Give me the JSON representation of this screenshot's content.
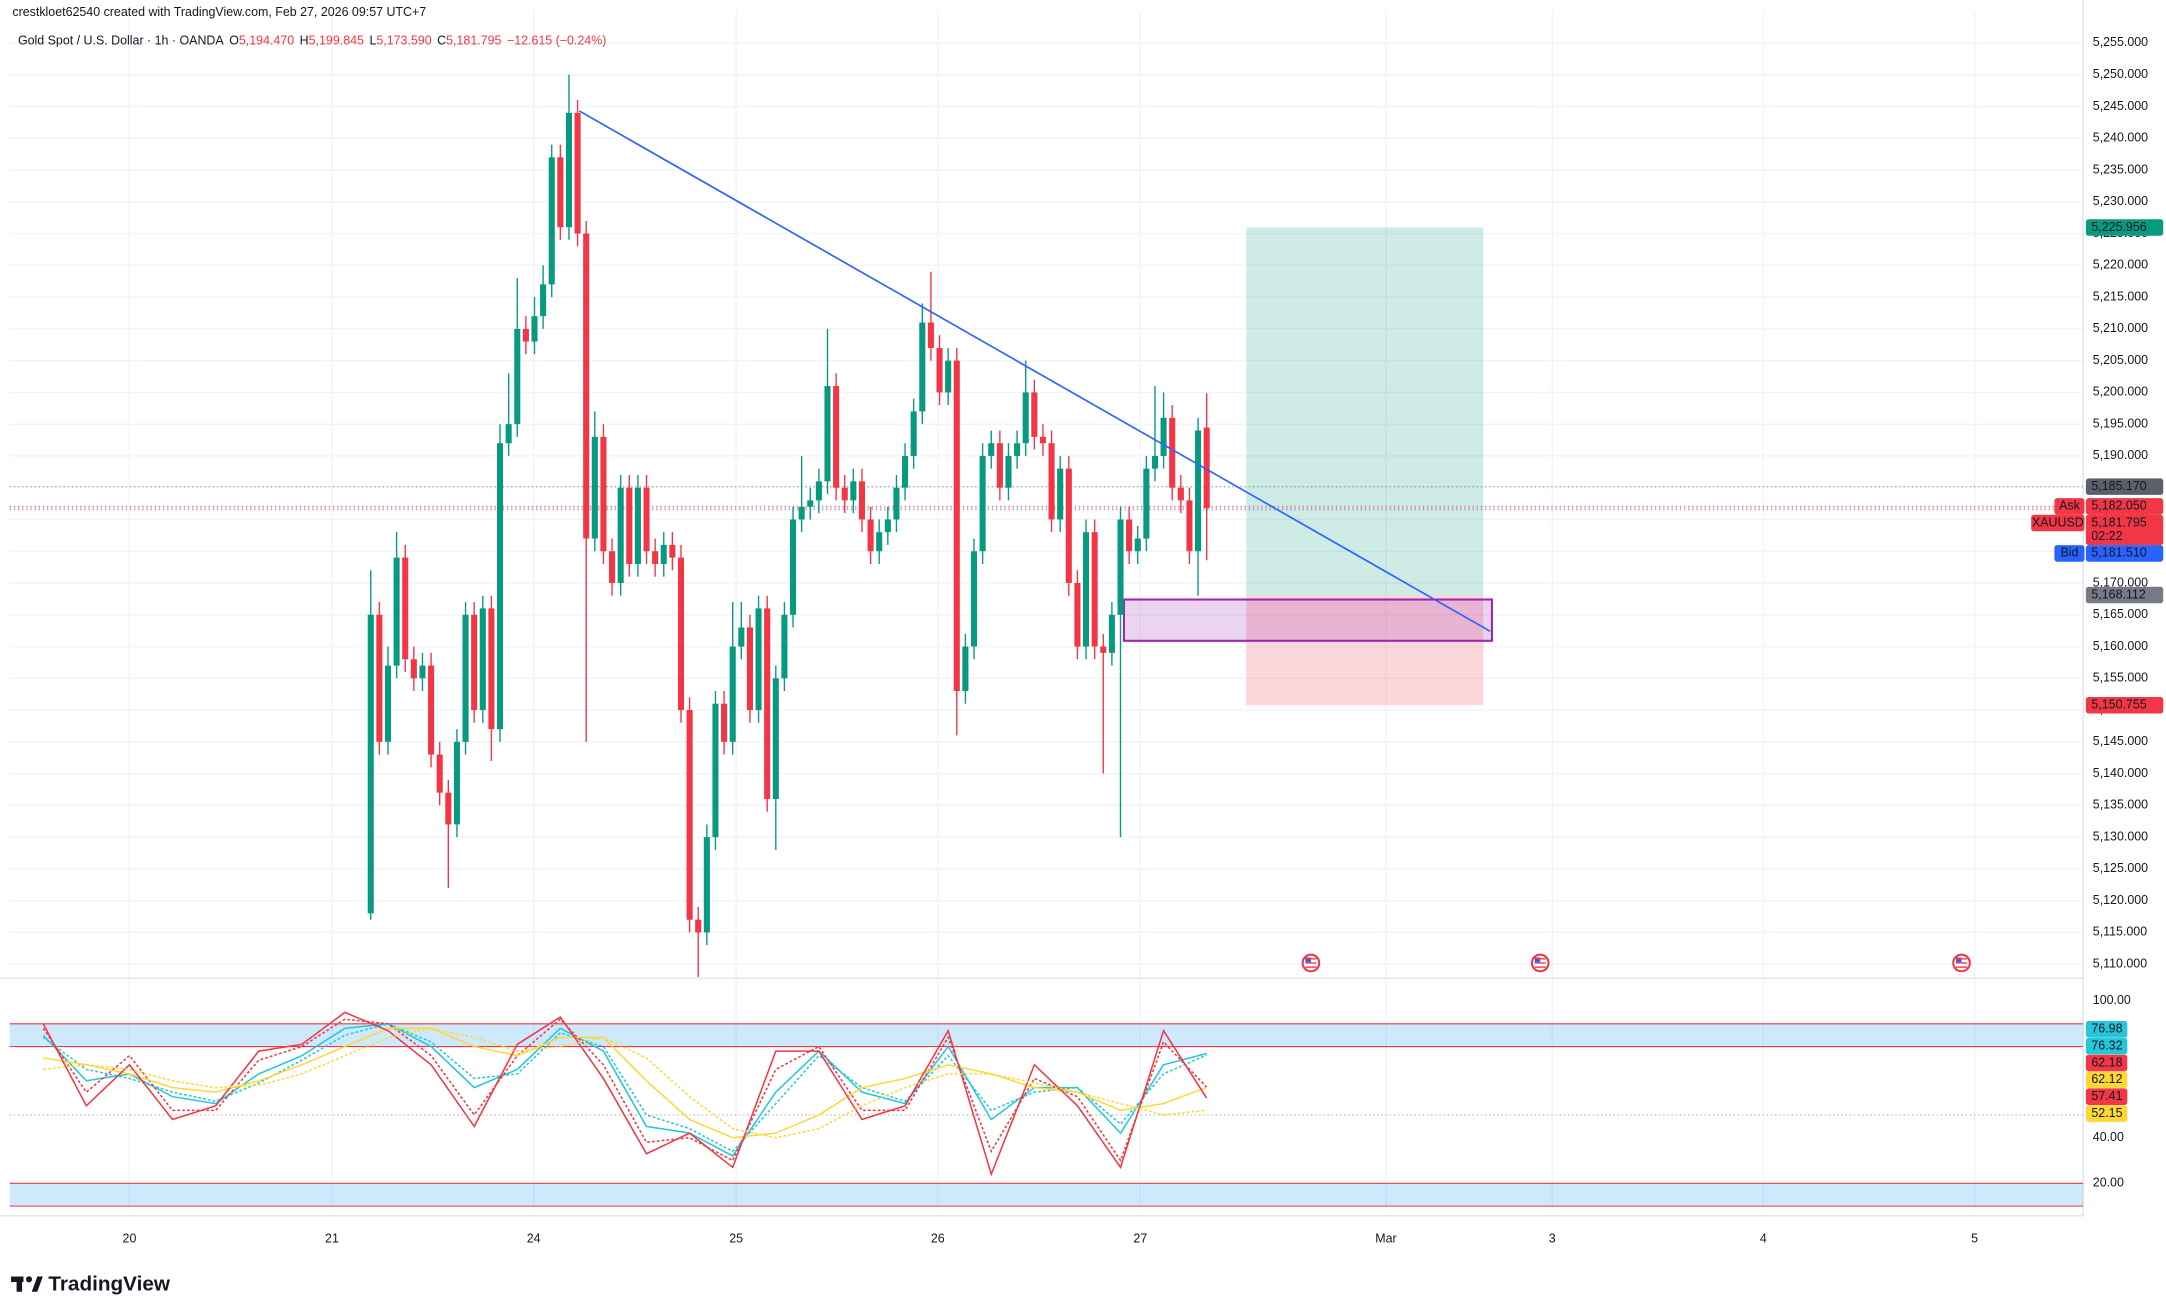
{
  "header": {
    "creator": "crestkloet62540 created with TradingView.com, Feb 27, 2026 09:57 UTC+7",
    "symbol": "Gold Spot / U.S. Dollar · 1h · OANDA",
    "ohlc": [
      {
        "key": "O",
        "value": "5,194.470"
      },
      {
        "key": "H",
        "value": "5,199.845"
      },
      {
        "key": "L",
        "value": "5,173.590"
      },
      {
        "key": "C",
        "value": "5,181.795"
      }
    ],
    "change": "−12.615 (−0.24%)"
  },
  "chart_data": [
    {
      "type": "candlestick",
      "up_color": "#089981",
      "down_color": "#f23645",
      "grid": true,
      "xlim": [
        -13.9,
        226.7
      ],
      "xticks": [
        {
          "value": 0,
          "label": "20"
        },
        {
          "value": 23.5,
          "label": "21"
        },
        {
          "value": 46.9,
          "label": "24"
        },
        {
          "value": 70.4,
          "label": "25"
        },
        {
          "value": 93.8,
          "label": "26"
        },
        {
          "value": 117.3,
          "label": "27"
        },
        {
          "value": 145.8,
          "label": "Mar"
        },
        {
          "value": 165.1,
          "label": "3"
        },
        {
          "value": 189.6,
          "label": "4"
        },
        {
          "value": 214.1,
          "label": "5"
        }
      ],
      "ylim": [
        5107.8,
        5260
      ],
      "yticks": [
        {
          "value": 5110,
          "label": "5,110.000"
        },
        {
          "value": 5115,
          "label": "5,115.000"
        },
        {
          "value": 5120,
          "label": "5,120.000"
        },
        {
          "value": 5125,
          "label": "5,125.000"
        },
        {
          "value": 5130,
          "label": "5,130.000"
        },
        {
          "value": 5135,
          "label": "5,135.000"
        },
        {
          "value": 5140,
          "label": "5,140.000"
        },
        {
          "value": 5145,
          "label": "5,145.000"
        },
        {
          "value": 5150,
          "label": "5,150.000"
        },
        {
          "value": 5155,
          "label": "5,155.000"
        },
        {
          "value": 5160,
          "label": "5,160.000"
        },
        {
          "value": 5165,
          "label": "5,165.000"
        },
        {
          "value": 5170,
          "label": "5,170.000"
        },
        {
          "value": 5175,
          "label": "5,175.000"
        },
        {
          "value": 5180,
          "label": "5,180.000"
        },
        {
          "value": 5185,
          "label": "5,185.000"
        },
        {
          "value": 5190,
          "label": "5,190.000"
        },
        {
          "value": 5195,
          "label": "5,195.000"
        },
        {
          "value": 5200,
          "label": "5,200.000"
        },
        {
          "value": 5205,
          "label": "5,205.000"
        },
        {
          "value": 5210,
          "label": "5,210.000"
        },
        {
          "value": 5215,
          "label": "5,215.000"
        },
        {
          "value": 5220,
          "label": "5,220.000"
        },
        {
          "value": 5225,
          "label": "5,225.000"
        },
        {
          "value": 5230,
          "label": "5,230.000"
        },
        {
          "value": 5235,
          "label": "5,235.000"
        },
        {
          "value": 5240,
          "label": "5,240.000"
        },
        {
          "value": 5245,
          "label": "5,245.000"
        },
        {
          "value": 5250,
          "label": "5,250.000"
        },
        {
          "value": 5255,
          "label": "5,255.000"
        }
      ],
      "x": [
        28,
        29,
        30,
        31,
        32,
        33,
        34,
        35,
        36,
        37,
        38,
        39,
        40,
        41,
        42,
        43,
        44,
        45,
        46,
        47,
        48,
        49,
        50,
        51,
        52,
        53,
        54,
        55,
        56,
        57,
        58,
        59,
        60,
        61,
        62,
        63,
        64,
        65,
        66,
        67,
        68,
        69,
        70,
        71,
        72,
        73,
        74,
        75,
        76,
        77,
        78,
        79,
        80,
        81,
        82,
        83,
        84,
        85,
        86,
        87,
        88,
        89,
        90,
        91,
        92,
        93,
        94,
        95,
        96,
        97,
        98,
        99,
        100,
        101,
        102,
        103,
        104,
        105,
        106,
        107,
        108,
        109,
        110,
        111,
        112,
        113,
        114,
        115,
        116,
        117,
        118,
        119,
        120,
        121,
        122,
        123,
        124,
        125
      ],
      "open": [
        5118,
        5165,
        5145,
        5157,
        5174,
        5158,
        5155,
        5157,
        5143,
        5137,
        5132,
        5145,
        5165,
        5150,
        5166,
        5147,
        5192,
        5195,
        5210,
        5208,
        5212,
        5217,
        5237,
        5226,
        5244,
        5225,
        5177,
        5193,
        5175,
        5170,
        5185,
        5173,
        5185,
        5175,
        5173,
        5176,
        5174,
        5150,
        5117,
        5115,
        5130,
        5151,
        5145,
        5160,
        5163,
        5150,
        5166,
        5136,
        5155,
        5165,
        5180,
        5182,
        5183,
        5186,
        5201,
        5185,
        5183,
        5186,
        5180,
        5175,
        5178,
        5180,
        5185,
        5190,
        5197,
        5211,
        5207,
        5200,
        5205,
        5153,
        5160,
        5175,
        5190,
        5192,
        5185,
        5190,
        5192,
        5200,
        5193,
        5192,
        5180,
        5188,
        5170,
        5160,
        5178,
        5160,
        5159,
        5165,
        5180,
        5175,
        5177,
        5188,
        5190,
        5196,
        5185,
        5183,
        5175,
        5194.47
      ],
      "high": [
        5172,
        5167,
        5160,
        5178,
        5176,
        5160,
        5159,
        5159,
        5145,
        5139,
        5147,
        5167,
        5167,
        5168,
        5168,
        5195,
        5203,
        5218,
        5212,
        5215,
        5220,
        5239,
        5239,
        5250,
        5246,
        5227,
        5197,
        5195,
        5177,
        5187,
        5187,
        5187,
        5187,
        5177,
        5178,
        5178,
        5176,
        5152,
        5119,
        5132,
        5153,
        5153,
        5167,
        5167,
        5165,
        5168,
        5168,
        5157,
        5167,
        5182,
        5190,
        5185,
        5188,
        5210,
        5203,
        5187,
        5188,
        5188,
        5182,
        5180,
        5182,
        5187,
        5192,
        5199,
        5214,
        5219,
        5209,
        5207,
        5207,
        5162,
        5177,
        5192,
        5194,
        5194,
        5192,
        5194,
        5205,
        5202,
        5195,
        5194,
        5190,
        5190,
        5172,
        5180,
        5180,
        5162,
        5167,
        5182,
        5182,
        5179,
        5190,
        5201,
        5200,
        5198,
        5187,
        5185,
        5196,
        5199.845
      ],
      "low": [
        5117,
        5143,
        5143,
        5155,
        5156,
        5153,
        5153,
        5141,
        5135,
        5122,
        5130,
        5143,
        5148,
        5148,
        5142,
        5145,
        5190,
        5193,
        5206,
        5206,
        5210,
        5215,
        5224,
        5224,
        5223,
        5145,
        5175,
        5173,
        5168,
        5168,
        5171,
        5171,
        5173,
        5171,
        5171,
        5172,
        5148,
        5115,
        5108,
        5113,
        5128,
        5143,
        5143,
        5158,
        5148,
        5148,
        5134,
        5128,
        5153,
        5163,
        5178,
        5180,
        5181,
        5184,
        5183,
        5181,
        5181,
        5178,
        5173,
        5173,
        5176,
        5178,
        5183,
        5188,
        5195,
        5205,
        5198,
        5198,
        5146,
        5151,
        5158,
        5173,
        5188,
        5183,
        5183,
        5188,
        5190,
        5191,
        5190,
        5178,
        5178,
        5168,
        5158,
        5158,
        5158,
        5140,
        5157,
        5130,
        5173,
        5173,
        5175,
        5186,
        5188,
        5183,
        5181,
        5173,
        5168,
        5173.59
      ],
      "close": [
        5165,
        5145,
        5157,
        5174,
        5158,
        5155,
        5157,
        5143,
        5137,
        5132,
        5145,
        5165,
        5150,
        5166,
        5147,
        5192,
        5195,
        5210,
        5208,
        5212,
        5217,
        5237,
        5226,
        5244,
        5225,
        5177,
        5193,
        5175,
        5170,
        5185,
        5173,
        5185,
        5175,
        5173,
        5176,
        5174,
        5150,
        5117,
        5115,
        5130,
        5151,
        5145,
        5160,
        5163,
        5150,
        5166,
        5136,
        5155,
        5165,
        5180,
        5182,
        5183,
        5186,
        5201,
        5185,
        5183,
        5186,
        5180,
        5175,
        5178,
        5180,
        5185,
        5190,
        5197,
        5211,
        5207,
        5200,
        5205,
        5153,
        5160,
        5175,
        5190,
        5192,
        5185,
        5190,
        5192,
        5200,
        5193,
        5192,
        5180,
        5188,
        5170,
        5160,
        5178,
        5160,
        5159,
        5165,
        5180,
        5175,
        5177,
        5188,
        5190,
        5196,
        5185,
        5183,
        5175,
        5194,
        5181.795
      ],
      "trendline": {
        "x": [
          52.2,
          157.9
        ],
        "y": [
          5244.3,
          5162.4
        ],
        "color": "#2962ff"
      },
      "long_position": {
        "x": [
          129.6,
          157.1
        ],
        "entry": {
          "value": 5168.112,
          "label": "5,168.112",
          "color": "#787b86"
        },
        "target": {
          "value": 5225.956,
          "label": "5,225.956",
          "color": "#089981"
        },
        "stop": {
          "value": 5150.755,
          "label": "5,150.755",
          "color": "#f23645"
        }
      },
      "zone": {
        "x": [
          115.4,
          158.1
        ],
        "y": [
          5160.9,
          5167.4
        ],
        "color": "#9c27b0"
      },
      "price_lines": [
        {
          "value": 5185.17,
          "label": "5,185.170",
          "color": "#5d606b"
        },
        {
          "name": "Ask",
          "value": 5182.05,
          "label": "5,182.050",
          "color": "#f23645"
        },
        {
          "name": "XAUUSD",
          "value": 5181.795,
          "label": "5,181.795",
          "countdown": "02:22",
          "color": "#f23645"
        },
        {
          "name": "Bid",
          "value": 5181.51,
          "label": "5,181.510",
          "color": "#2962ff"
        }
      ]
    },
    {
      "type": "line",
      "grid": true,
      "xlim": [
        -13.9,
        226.7
      ],
      "ylim": [
        8.8,
        110
      ],
      "yticks": [
        {
          "value": 100,
          "label": "100.00"
        },
        {
          "value": 40,
          "label": "40.00"
        },
        {
          "value": 20,
          "label": "20.00"
        }
      ],
      "bands": [
        {
          "from": 80,
          "to": 90
        },
        {
          "from": 10,
          "to": 20
        }
      ],
      "band_color": "#2196f3",
      "band_edge_color": "#f23645",
      "midline": 50,
      "x": [
        -10,
        -5,
        0,
        5,
        10,
        15,
        20,
        25,
        30,
        35,
        40,
        45,
        50,
        55,
        60,
        65,
        70,
        75,
        80,
        85,
        90,
        95,
        100,
        105,
        110,
        115,
        120,
        125
      ],
      "series": [
        {
          "color": "#26c6da",
          "dash": false,
          "values": [
            85,
            65,
            68,
            58,
            55,
            68,
            76,
            88,
            90,
            80,
            62,
            70,
            88,
            78,
            45,
            42,
            32,
            60,
            78,
            60,
            55,
            80,
            48,
            62,
            62,
            42,
            72,
            76.98
          ]
        },
        {
          "color": "#26c6da",
          "dash": true,
          "values": [
            84,
            70,
            66,
            60,
            56,
            64,
            74,
            85,
            90,
            82,
            66,
            68,
            86,
            80,
            50,
            44,
            34,
            55,
            76,
            62,
            56,
            76,
            52,
            60,
            62,
            46,
            68,
            76.32
          ]
        },
        {
          "color": "#f23645",
          "dash": true,
          "values": [
            88,
            60,
            76,
            52,
            52,
            74,
            80,
            92,
            90,
            76,
            50,
            76,
            92,
            72,
            38,
            40,
            30,
            70,
            80,
            52,
            52,
            84,
            34,
            66,
            58,
            30,
            82,
            62.18
          ]
        },
        {
          "color": "#fdd835",
          "dash": false,
          "values": [
            75,
            72,
            68,
            62,
            60,
            65,
            72,
            80,
            88,
            88,
            80,
            76,
            84,
            84,
            65,
            48,
            40,
            42,
            50,
            62,
            66,
            72,
            68,
            62,
            60,
            52,
            55,
            62.12
          ]
        },
        {
          "color": "#f23645",
          "dash": false,
          "values": [
            90,
            54,
            72,
            48,
            54,
            78,
            81,
            95,
            87,
            72,
            45,
            81,
            93,
            66,
            33,
            42,
            27,
            78,
            78,
            48,
            54,
            87,
            24,
            72,
            54,
            27,
            87,
            57.41
          ]
        },
        {
          "color": "#fdd835",
          "dash": true,
          "values": [
            70,
            72,
            70,
            65,
            62,
            63,
            68,
            76,
            84,
            88,
            84,
            78,
            80,
            84,
            75,
            58,
            44,
            40,
            44,
            54,
            62,
            68,
            68,
            64,
            60,
            55,
            50,
            52.15
          ]
        }
      ]
    }
  ],
  "brand": "TradingView"
}
